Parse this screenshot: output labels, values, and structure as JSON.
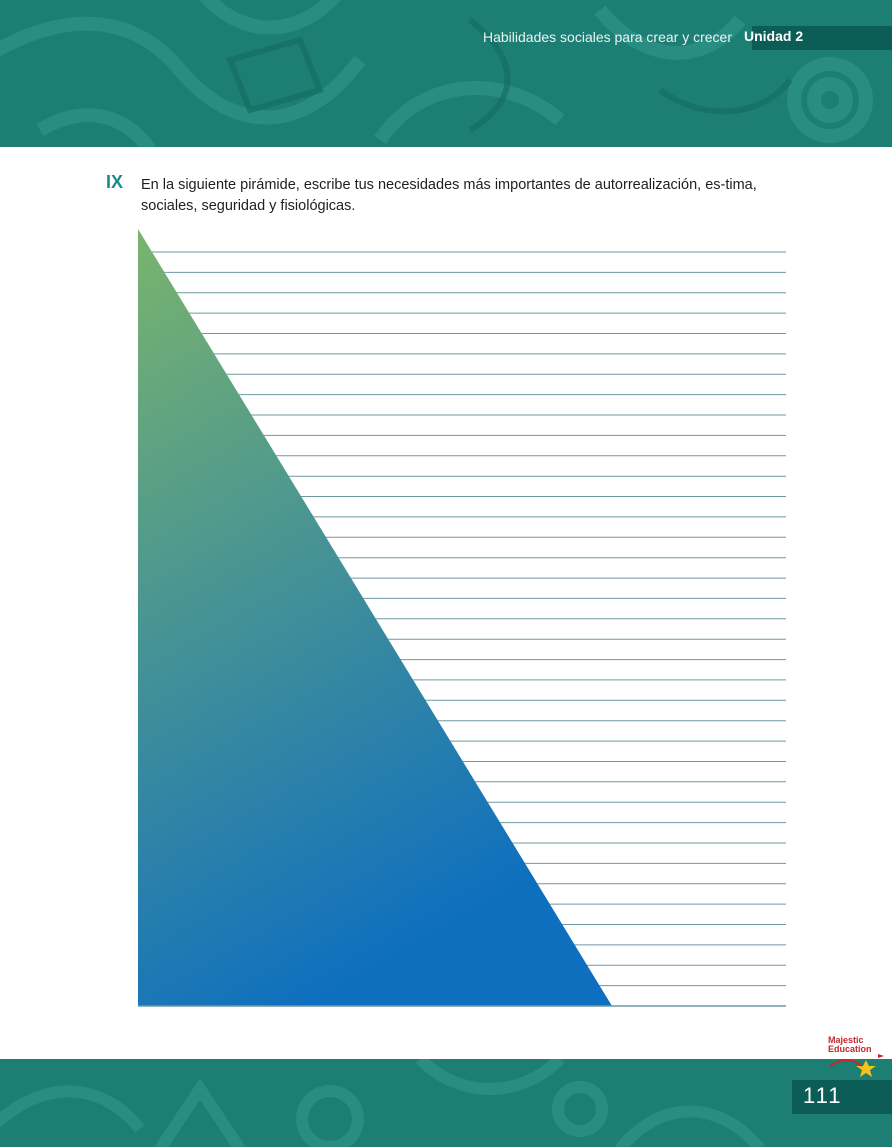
{
  "header": {
    "subtitle": "Habilidades sociales para crear y crecer",
    "unit": "Unidad 2"
  },
  "exercise": {
    "numeral": "IX",
    "instruction": "En la siguiente pirámide, escribe tus necesidades más importantes de autorrealización, es-tima, sociales, seguridad y fisiológicas.",
    "writing_lines": 37
  },
  "footer": {
    "logo_line1": "Majestic",
    "logo_line2": "Education",
    "page_number": "111"
  },
  "colors": {
    "header_teal": "#1d7f74",
    "dark_teal": "#0d5d57",
    "pyramid_top": "#7ab46d",
    "pyramid_bottom": "#0f6fbf",
    "line_color": "#6d9aa0",
    "accent": "#1c8a8e"
  }
}
